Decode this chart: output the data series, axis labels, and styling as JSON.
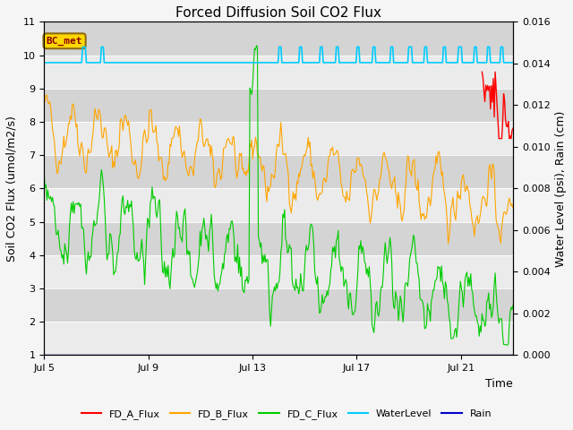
{
  "title": "Forced Diffusion Soil CO2 Flux",
  "ylabel_left": "Soil CO2 Flux (umol/m2/s)",
  "ylabel_right": "Water Level (psi), Rain (cm)",
  "xlabel": "Time",
  "ylim_left": [
    1.0,
    11.0
  ],
  "ylim_right": [
    0.0,
    0.016
  ],
  "xtick_labels": [
    "Jul 5",
    "Jul 9",
    "Jul 13",
    "Jul 17",
    "Jul 21"
  ],
  "xtick_positions": [
    0,
    4,
    8,
    12,
    16
  ],
  "xlim": [
    0,
    18
  ],
  "background_color": "#e0e0e0",
  "band_color_light": "#ebebeb",
  "band_color_dark": "#d4d4d4",
  "fig_facecolor": "#f5f5f5",
  "title_fontsize": 11,
  "label_fontsize": 9,
  "tick_fontsize": 8,
  "bc_met_label": "BC_met",
  "bc_met_fgcolor": "#8B0000",
  "bc_met_bgcolor": "#FFD700",
  "bc_met_edgecolor": "#8B6914",
  "legend_entries": [
    "FD_A_Flux",
    "FD_B_Flux",
    "FD_C_Flux",
    "WaterLevel",
    "Rain"
  ],
  "fd_a_color": "#FF0000",
  "fd_b_color": "#FFA500",
  "fd_c_color": "#00CC00",
  "water_color": "#00CCFF",
  "rain_color": "#0000CC",
  "n_points": 500,
  "n_days": 18,
  "seed": 42
}
